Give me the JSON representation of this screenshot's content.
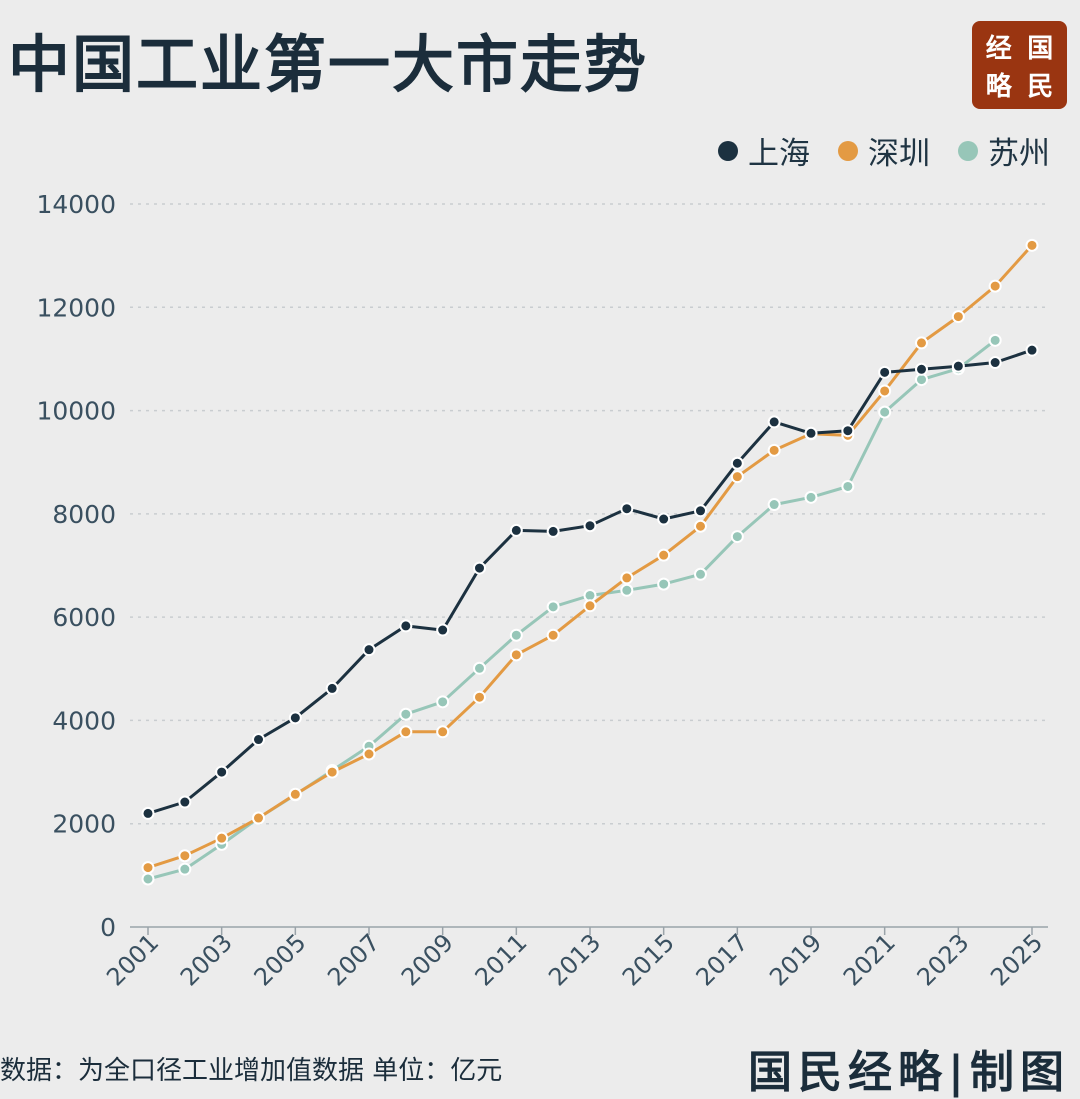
{
  "header": {
    "title": "中国工业第一大市走势",
    "brand": [
      "经",
      "国",
      "略",
      "民"
    ]
  },
  "chart_data": {
    "type": "line",
    "title": "中国工业第一大市走势",
    "ylim": [
      0,
      14000
    ],
    "yticks": [
      0,
      2000,
      4000,
      6000,
      8000,
      10000,
      12000,
      14000
    ],
    "xticks": [
      "2001",
      "2003",
      "2005",
      "2007",
      "2009",
      "2011",
      "2013",
      "2015",
      "2017",
      "2019",
      "2021",
      "2023",
      "2025"
    ],
    "x": [
      2001,
      2002,
      2003,
      2004,
      2005,
      2006,
      2007,
      2008,
      2009,
      2010,
      2011,
      2012,
      2013,
      2014,
      2015,
      2016,
      2017,
      2018,
      2019,
      2020,
      2021,
      2022,
      2023,
      2024,
      2025
    ],
    "grid": "horizontal-dashed",
    "legend_position": "top-right",
    "series": [
      {
        "name": "上海",
        "color": "#1c3140",
        "values": [
          2200,
          2420,
          3000,
          3630,
          4050,
          4620,
          5370,
          5830,
          5750,
          6950,
          7680,
          7660,
          7770,
          8100,
          7900,
          8060,
          8980,
          9780,
          9560,
          9610,
          10740,
          10800,
          10860,
          10930,
          11170
        ]
      },
      {
        "name": "深圳",
        "color": "#e39a43",
        "values": [
          1150,
          1380,
          1720,
          2110,
          2570,
          3000,
          3350,
          3780,
          3780,
          4450,
          5270,
          5650,
          6220,
          6760,
          7200,
          7760,
          8720,
          9230,
          9550,
          9520,
          10380,
          11310,
          11820,
          12410,
          13200
        ]
      },
      {
        "name": "苏州",
        "color": "#97c6b8",
        "values": [
          930,
          1120,
          1600,
          2110,
          2560,
          3030,
          3500,
          4120,
          4360,
          5010,
          5650,
          6200,
          6420,
          6520,
          6640,
          6830,
          7560,
          8180,
          8320,
          8530,
          9970,
          10600,
          10810,
          11360,
          null
        ]
      }
    ]
  },
  "footer": {
    "note": "数据：为全口径工业增加值数据  单位：亿元",
    "brand": "国民经略|制图"
  }
}
